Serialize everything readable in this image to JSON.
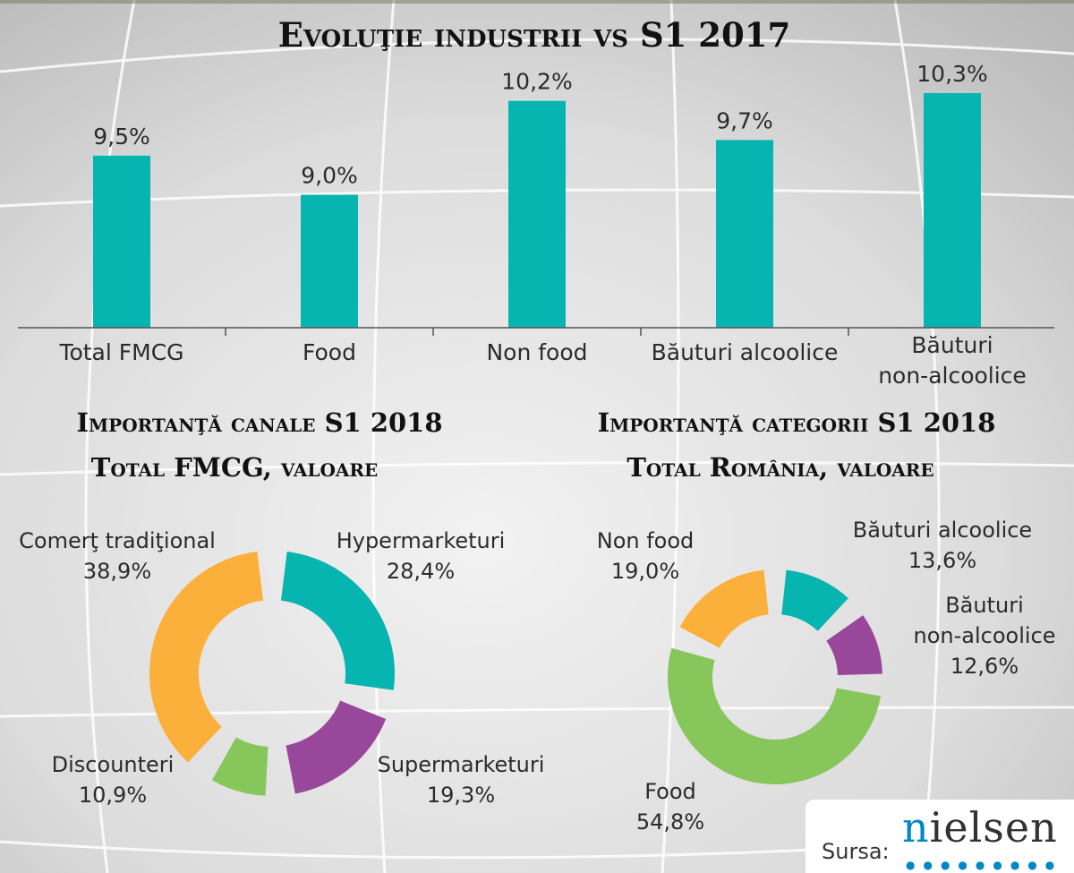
{
  "colors": {
    "teal": "#06b4b0",
    "purple": "#99479a",
    "green": "#87c65b",
    "orange": "#fbb03b",
    "text": "#2b2b2b",
    "title": "#111111"
  },
  "chart_data": [
    {
      "type": "bar",
      "title": "Evoluţie industrii vs S1 2017",
      "categories": [
        "Total FMCG",
        "Food",
        "Non food",
        "Băuturi alcoolice",
        "Băuturi non-alcoolice"
      ],
      "category_lines": [
        [
          "Total FMCG"
        ],
        [
          "Food"
        ],
        [
          "Non food"
        ],
        [
          "Băuturi alcoolice"
        ],
        [
          "Băuturi",
          "non-alcoolice"
        ]
      ],
      "values": [
        9.5,
        9.0,
        10.2,
        9.7,
        10.3
      ],
      "value_labels": [
        "9,5%",
        "9,0%",
        "10,2%",
        "9,7%",
        "10,3%"
      ],
      "ylim": [
        7.3,
        10.3
      ]
    },
    {
      "type": "pie",
      "title": "Importanţă canale S1 2018",
      "subtitle": "Total FMCG, valoare",
      "slices": [
        {
          "label": "Hypermarketuri",
          "value": 28.4,
          "value_label": "28,4%",
          "color": "teal"
        },
        {
          "label": "Supermarketuri",
          "value": 19.3,
          "value_label": "19,3%",
          "color": "purple"
        },
        {
          "label": "Discounteri",
          "value": 10.9,
          "value_label": "10,9%",
          "color": "green"
        },
        {
          "label": "Comerţ tradiţional",
          "value": 38.9,
          "value_label": "38,9%",
          "color": "orange"
        }
      ]
    },
    {
      "type": "pie",
      "title": "Importanţă categorii S1 2018",
      "subtitle": "Total România, valoare",
      "slices": [
        {
          "label": "Băuturi alcoolice",
          "value": 13.6,
          "value_label": "13,6%",
          "color": "teal"
        },
        {
          "label": "Băuturi non-alcoolice",
          "label_lines": [
            "Băuturi",
            "non-alcoolice"
          ],
          "value": 12.6,
          "value_label": "12,6%",
          "color": "purple"
        },
        {
          "label": "Food",
          "value": 54.8,
          "value_label": "54,8%",
          "color": "green"
        },
        {
          "label": "Non food",
          "value": 19.0,
          "value_label": "19,0%",
          "color": "orange"
        }
      ]
    }
  ],
  "source": {
    "label": "Sursa:",
    "brand": "nielsen"
  }
}
